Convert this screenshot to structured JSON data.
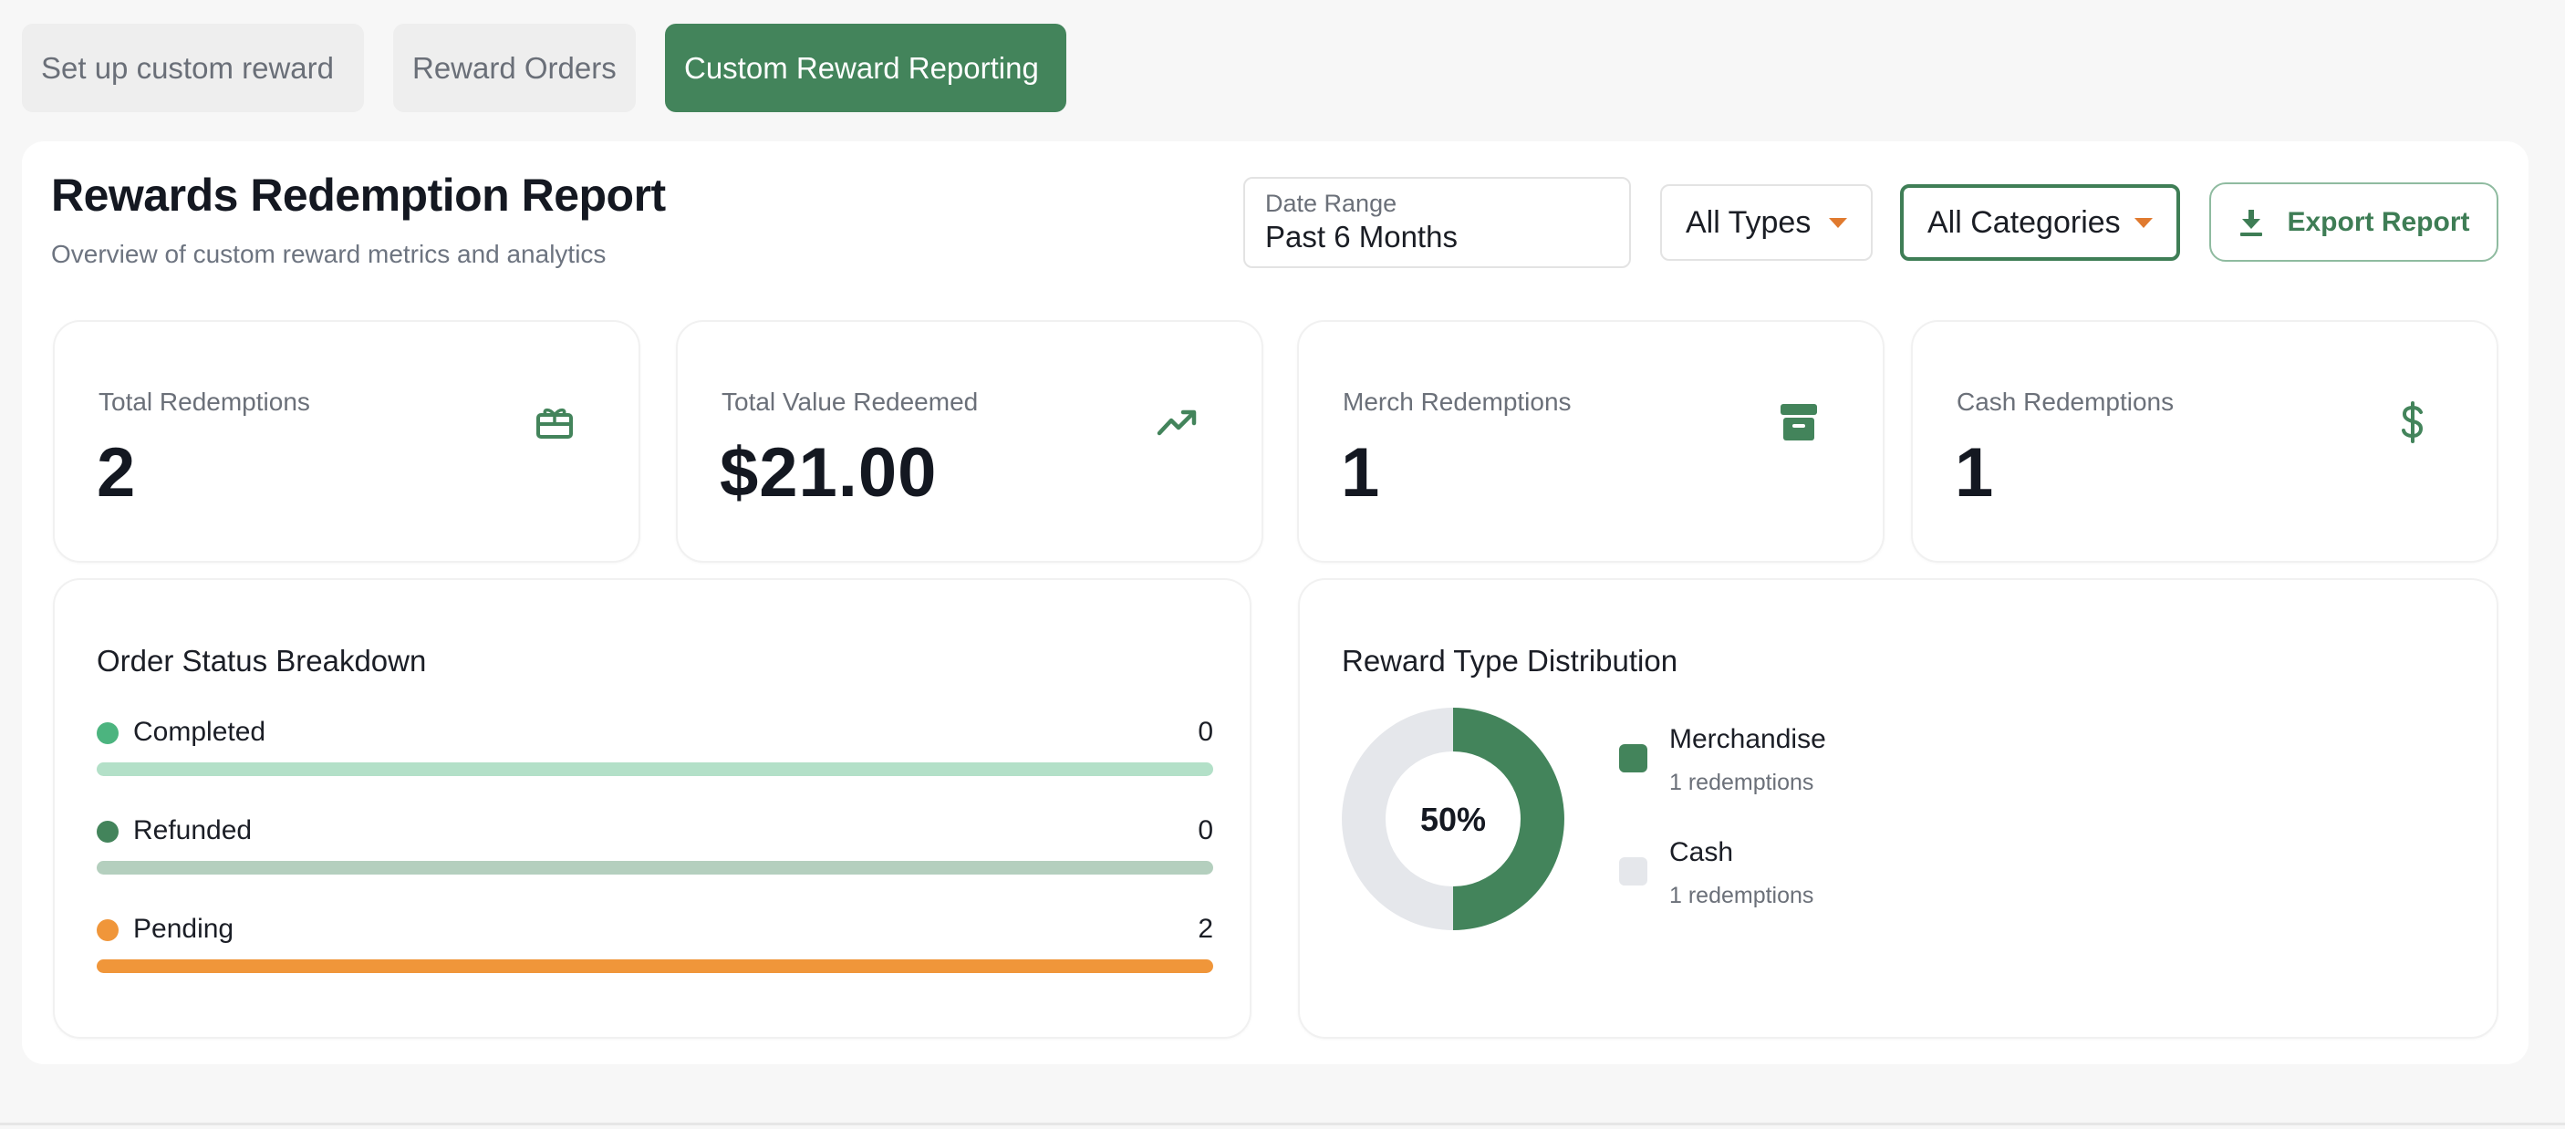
{
  "tabs": [
    {
      "label": "Set up custom reward",
      "active": false
    },
    {
      "label": "Reward Orders",
      "active": false
    },
    {
      "label": "Custom Reward Reporting",
      "active": true
    }
  ],
  "header": {
    "title": "Rewards Redemption Report",
    "subtitle": "Overview of custom reward metrics and analytics"
  },
  "filters": {
    "date_range_label": "Date Range",
    "date_range_value": "Past 6 Months",
    "types_value": "All Types",
    "categories_value": "All Categories",
    "export_label": "Export Report"
  },
  "stats": [
    {
      "label": "Total Redemptions",
      "value": "2",
      "icon": "gift-card-icon"
    },
    {
      "label": "Total Value Redeemed",
      "value": "$21.00",
      "icon": "trending-up-icon"
    },
    {
      "label": "Merch Redemptions",
      "value": "1",
      "icon": "archive-box-icon"
    },
    {
      "label": "Cash Redemptions",
      "value": "1",
      "icon": "dollar-sign-icon"
    }
  ],
  "order_status": {
    "title": "Order Status Breakdown",
    "rows": [
      {
        "name": "Completed",
        "count": "0",
        "dot_color": "#4cb47f",
        "bar_color": "#b3e0c8"
      },
      {
        "name": "Refunded",
        "count": "0",
        "dot_color": "#43845b",
        "bar_color": "#b4cfbe"
      },
      {
        "name": "Pending",
        "count": "2",
        "dot_color": "#f0963a",
        "bar_color": "#f0963a"
      }
    ]
  },
  "distribution": {
    "title": "Reward Type Distribution",
    "center_label": "50%",
    "items": [
      {
        "name": "Merchandise",
        "sub": "1 redemptions",
        "color": "#43845b"
      },
      {
        "name": "Cash",
        "sub": "1 redemptions",
        "color": "#e5e7eb"
      }
    ]
  },
  "chart_data": {
    "type": "pie",
    "categories": [
      "Merchandise",
      "Cash"
    ],
    "values": [
      1,
      1
    ],
    "center_text": "50%"
  },
  "colors": {
    "accent": "#43845b",
    "warning": "#f0963a",
    "caret": "#e07a2f"
  }
}
